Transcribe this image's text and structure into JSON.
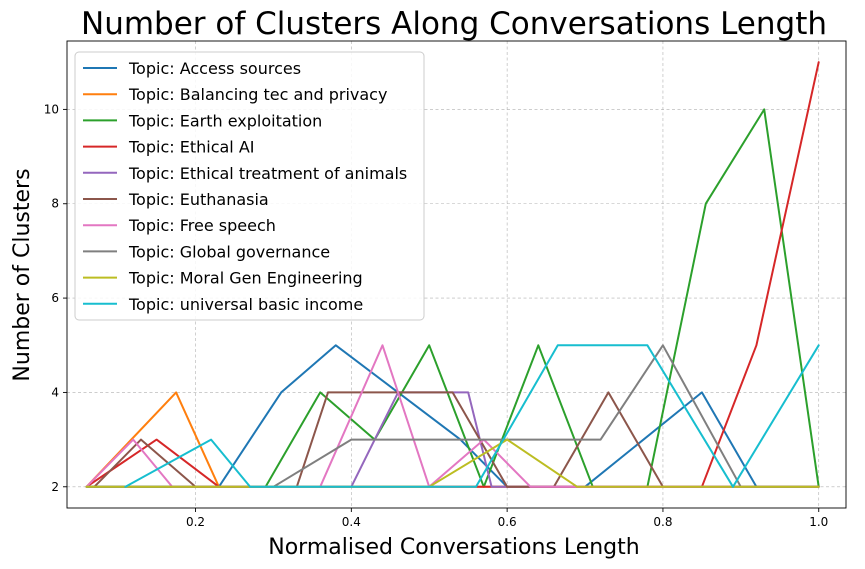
{
  "chart_data": {
    "type": "line",
    "title": "Number of Clusters Along Conversations Length",
    "xlabel": "Normalised Conversations Length",
    "ylabel": "Number of Clusters",
    "xlim": [
      0.035,
      1.035
    ],
    "ylim": [
      1.55,
      11.45
    ],
    "xticks": [
      0.2,
      0.4,
      0.6,
      0.8,
      1.0
    ],
    "xtick_labels": [
      "0.2",
      "0.4",
      "0.6",
      "0.8",
      "1.0"
    ],
    "yticks": [
      2,
      4,
      6,
      8,
      10
    ],
    "ytick_labels": [
      "2",
      "4",
      "6",
      "8",
      "10"
    ],
    "grid": true,
    "legend_position": "upper-left",
    "series": [
      {
        "name": "Topic: Access sources",
        "color": "#1f77b4",
        "x": [
          0.06,
          0.23,
          0.31,
          0.38,
          0.46,
          0.54,
          0.6,
          0.7,
          0.85,
          0.92,
          1.0
        ],
        "y": [
          2,
          2,
          4,
          5,
          4,
          3,
          2,
          2,
          4,
          2,
          2
        ]
      },
      {
        "name": "Topic: Balancing tec and privacy",
        "color": "#ff7f0e",
        "x": [
          0.06,
          0.175,
          0.23,
          1.0
        ],
        "y": [
          2,
          4,
          2,
          2
        ]
      },
      {
        "name": "Topic: Earth exploitation",
        "color": "#2ca02c",
        "x": [
          0.06,
          0.29,
          0.36,
          0.43,
          0.5,
          0.57,
          0.64,
          0.71,
          0.78,
          0.855,
          0.93,
          1.0
        ],
        "y": [
          2,
          2,
          4,
          3,
          5,
          2,
          5,
          2,
          2,
          8,
          10,
          2
        ]
      },
      {
        "name": "Topic: Ethical AI",
        "color": "#d62728",
        "x": [
          0.06,
          0.15,
          0.23,
          0.85,
          0.92,
          1.0
        ],
        "y": [
          2,
          3,
          2,
          2,
          5,
          11
        ]
      },
      {
        "name": "Topic: Ethical treatment of animals",
        "color": "#9467bd",
        "x": [
          0.06,
          0.4,
          0.46,
          0.55,
          0.58,
          1.0
        ],
        "y": [
          2,
          2,
          4,
          4,
          2,
          2
        ]
      },
      {
        "name": "Topic: Euthanasia",
        "color": "#8c564b",
        "x": [
          0.07,
          0.13,
          0.2,
          0.33,
          0.37,
          0.53,
          0.6,
          0.66,
          0.73,
          0.8,
          1.0
        ],
        "y": [
          2,
          3,
          2,
          2,
          4,
          4,
          2,
          2,
          4,
          2,
          2
        ]
      },
      {
        "name": "Topic: Free speech",
        "color": "#e377c2",
        "x": [
          0.06,
          0.12,
          0.17,
          0.36,
          0.44,
          0.5,
          0.57,
          0.63,
          1.0
        ],
        "y": [
          2,
          3,
          2,
          2,
          5,
          2,
          3,
          2,
          2
        ]
      },
      {
        "name": "Topic: Global governance",
        "color": "#7f7f7f",
        "x": [
          0.06,
          0.3,
          0.4,
          0.72,
          0.8,
          0.9,
          1.0
        ],
        "y": [
          2,
          2,
          3,
          3,
          5,
          2,
          2
        ]
      },
      {
        "name": "Topic: Moral Gen Engineering",
        "color": "#bcbd22",
        "x": [
          0.06,
          0.5,
          0.6,
          0.69,
          1.0
        ],
        "y": [
          2,
          2,
          3,
          2,
          2
        ]
      },
      {
        "name": "Topic: universal basic income",
        "color": "#17becf",
        "x": [
          0.11,
          0.22,
          0.27,
          0.56,
          0.665,
          0.78,
          0.89,
          1.0
        ],
        "y": [
          2,
          3,
          2,
          2,
          5,
          5,
          2,
          5
        ]
      }
    ]
  }
}
